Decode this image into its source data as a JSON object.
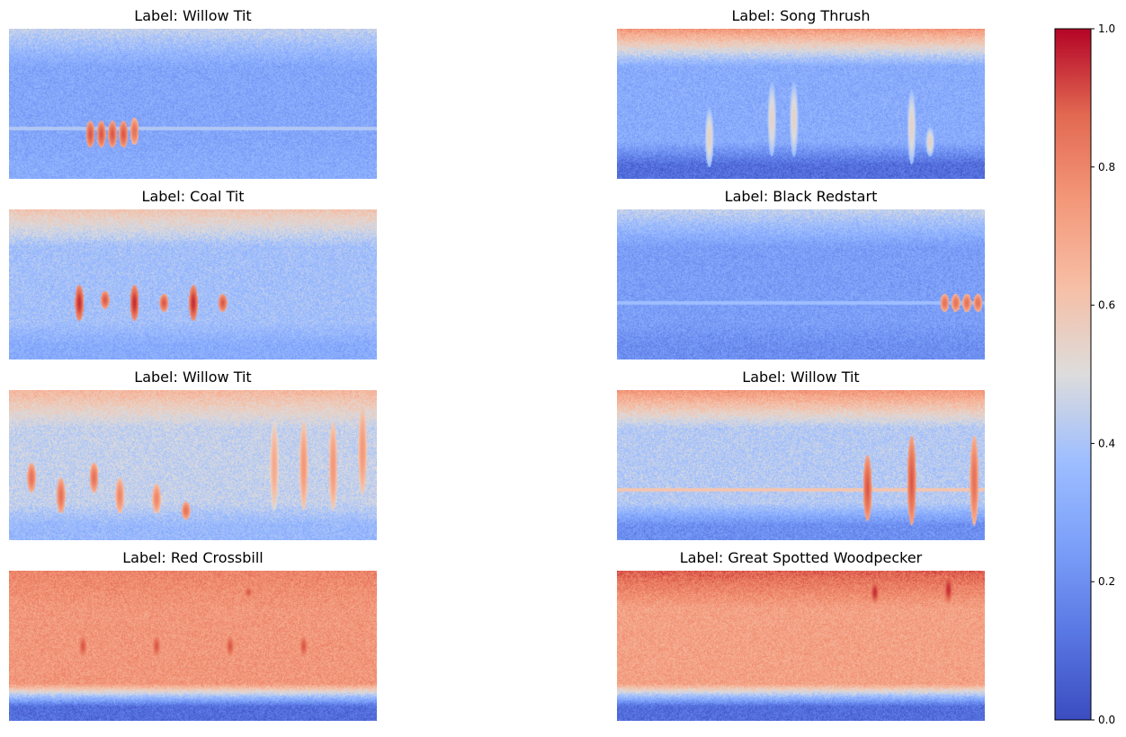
{
  "chart_data": {
    "type": "heatmap",
    "layout": {
      "rows": 4,
      "cols": 2
    },
    "panels": [
      {
        "title": "Label: Willow Tit",
        "base_level": 0.28,
        "top_band": 0.45,
        "bottom_level": 0.3
      },
      {
        "title": "Label: Song Thrush",
        "base_level": 0.3,
        "top_band": 0.75,
        "bottom_level": 0.1
      },
      {
        "title": "Label: Coal Tit",
        "base_level": 0.38,
        "top_band": 0.6,
        "bottom_level": 0.3
      },
      {
        "title": "Label: Black Redstart",
        "base_level": 0.25,
        "top_band": 0.45,
        "bottom_level": 0.2
      },
      {
        "title": "Label: Willow Tit",
        "base_level": 0.45,
        "top_band": 0.65,
        "bottom_level": 0.35
      },
      {
        "title": "Label: Willow Tit",
        "base_level": 0.42,
        "top_band": 0.75,
        "bottom_level": 0.2
      },
      {
        "title": "Label: Red Crossbill",
        "base_level": 0.75,
        "top_band": 0.8,
        "bottom_level": 0.1
      },
      {
        "title": "Label: Great Spotted Woodpecker",
        "base_level": 0.72,
        "top_band": 0.88,
        "bottom_level": 0.1
      }
    ],
    "colormap": "coolwarm",
    "colorbar": {
      "min": 0.0,
      "max": 1.0,
      "ticks": [
        0.0,
        0.2,
        0.4,
        0.6,
        0.8,
        1.0
      ],
      "tick_labels": [
        "0.0",
        "0.2",
        "0.4",
        "0.6",
        "0.8",
        "1.0"
      ]
    }
  }
}
